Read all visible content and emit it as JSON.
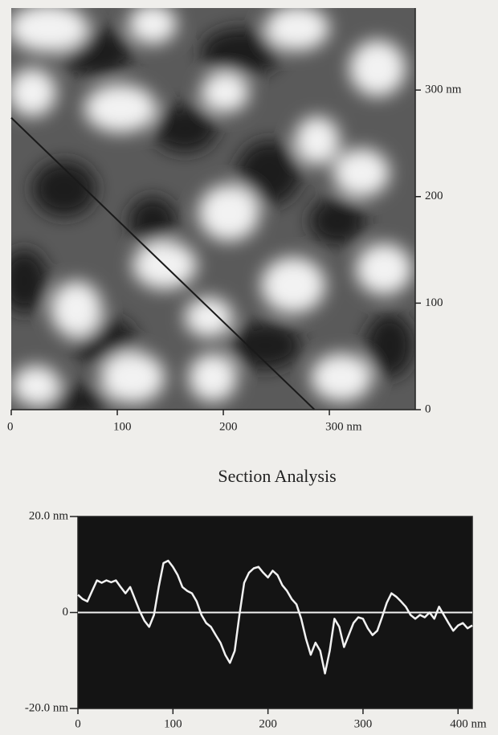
{
  "chart_data": [
    {
      "type": "image",
      "xlim": [
        0,
        381
      ],
      "ylim": [
        0,
        377
      ],
      "xticks": [
        0,
        100,
        200,
        {
          "value": 300,
          "label": "300 nm"
        }
      ],
      "yticks": [
        0,
        100,
        200,
        {
          "value": 300,
          "label": "300 nm"
        }
      ],
      "section_line": {
        "x": [
          0,
          286
        ],
        "y": [
          274,
          0
        ],
        "color": "#1a1a1a"
      }
    },
    {
      "type": "line",
      "title": "Section Analysis",
      "x": [
        0,
        5,
        10,
        15,
        20,
        25,
        30,
        35,
        40,
        45,
        50,
        55,
        60,
        65,
        70,
        75,
        80,
        85,
        90,
        95,
        100,
        105,
        110,
        115,
        120,
        125,
        130,
        135,
        140,
        145,
        150,
        155,
        160,
        165,
        170,
        175,
        180,
        185,
        190,
        195,
        200,
        205,
        210,
        215,
        220,
        225,
        230,
        235,
        240,
        245,
        250,
        255,
        260,
        265,
        270,
        275,
        280,
        285,
        290,
        295,
        300,
        305,
        310,
        315,
        320,
        325,
        330,
        335,
        340,
        345,
        350,
        355,
        360,
        365,
        370,
        375,
        380,
        385,
        390,
        395,
        400,
        405,
        410,
        415
      ],
      "series": [
        {
          "color": "#f2f2f2",
          "values": [
            3.7,
            2.8,
            2.3,
            4.5,
            6.7,
            6.2,
            6.7,
            6.3,
            6.7,
            5.3,
            4,
            5.3,
            2.8,
            0.3,
            -1.7,
            -3,
            -0.5,
            5.3,
            10.3,
            10.8,
            9.5,
            7.8,
            5.3,
            4.5,
            4,
            2.3,
            -0.5,
            -2.2,
            -3,
            -4.7,
            -6.3,
            -8.8,
            -10.5,
            -8,
            -0.5,
            6.2,
            8.3,
            9.2,
            9.5,
            8.3,
            7.3,
            8.7,
            7.8,
            5.7,
            4.5,
            2.8,
            1.7,
            -1.3,
            -5.5,
            -8.8,
            -6.3,
            -8,
            -12.7,
            -8,
            -1.3,
            -3,
            -7.2,
            -4.7,
            -2.2,
            -1,
            -1.3,
            -3.3,
            -4.7,
            -3.8,
            -1,
            2,
            4,
            3.3,
            2.3,
            1.2,
            -0.5,
            -1.3,
            -0.5,
            -1,
            0,
            -1.3,
            1.2,
            -0.5,
            -2.2,
            -3.8,
            -2.7,
            -2.2,
            -3.3,
            -2.7
          ]
        }
      ],
      "xlim": [
        0,
        415
      ],
      "ylim": [
        -20,
        20
      ],
      "xticks": [
        0,
        100,
        200,
        300,
        {
          "value": 400,
          "label": "400 nm"
        }
      ],
      "yticks": [
        {
          "value": 20,
          "label": "20.0 nm"
        },
        0,
        {
          "value": -20,
          "label": "-20.0 nm"
        }
      ],
      "zero_line": true,
      "background": "#141414"
    }
  ]
}
